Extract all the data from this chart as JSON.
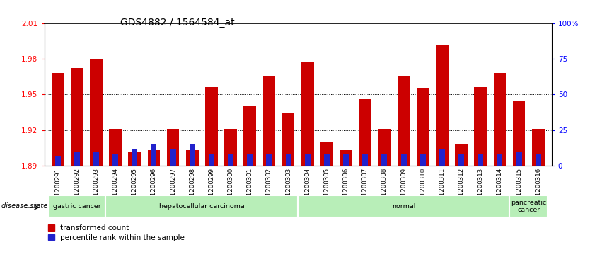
{
  "title": "GDS4882 / 1564584_at",
  "samples": [
    "GSM1200291",
    "GSM1200292",
    "GSM1200293",
    "GSM1200294",
    "GSM1200295",
    "GSM1200296",
    "GSM1200297",
    "GSM1200298",
    "GSM1200299",
    "GSM1200300",
    "GSM1200301",
    "GSM1200302",
    "GSM1200303",
    "GSM1200304",
    "GSM1200305",
    "GSM1200306",
    "GSM1200307",
    "GSM1200308",
    "GSM1200309",
    "GSM1200310",
    "GSM1200311",
    "GSM1200312",
    "GSM1200313",
    "GSM1200314",
    "GSM1200315",
    "GSM1200316"
  ],
  "transformed_count": [
    1.968,
    1.972,
    1.98,
    1.921,
    1.902,
    1.903,
    1.921,
    1.903,
    1.956,
    1.921,
    1.94,
    1.966,
    1.934,
    1.977,
    1.91,
    1.903,
    1.946,
    1.921,
    1.966,
    1.955,
    1.992,
    1.908,
    1.956,
    1.968,
    1.945,
    1.921
  ],
  "percentile_rank": [
    7,
    10,
    10,
    8,
    12,
    15,
    12,
    15,
    8,
    8,
    8,
    8,
    8,
    8,
    8,
    8,
    8,
    8,
    8,
    8,
    12,
    8,
    8,
    8,
    10,
    8
  ],
  "group_labels": [
    "gastric cancer",
    "hepatocellular carcinoma",
    "normal",
    "pancreatic\ncancer"
  ],
  "group_starts": [
    0,
    3,
    13,
    24
  ],
  "group_ends": [
    3,
    13,
    24,
    26
  ],
  "ymin": 1.89,
  "ymax": 2.01,
  "yticks": [
    1.89,
    1.92,
    1.95,
    1.98,
    2.01
  ],
  "bar_color": "#cc0000",
  "blue_color": "#2222cc",
  "tick_area_bg": "#cccccc",
  "group_bg": "#b8eeb8",
  "title_fontsize": 10
}
